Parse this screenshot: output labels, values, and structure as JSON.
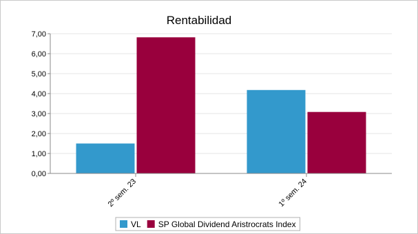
{
  "chart_data": {
    "type": "bar",
    "title": "Rentabilidad",
    "xlabel": "",
    "ylabel": "",
    "categories": [
      "2º sem. 23",
      "1º sem. 24"
    ],
    "series": [
      {
        "name": "VL",
        "values": [
          1.5,
          4.18
        ],
        "color": "#3399cc"
      },
      {
        "name": "SP Global Dividend Aristrocrats Index",
        "values": [
          6.82,
          3.08
        ],
        "color": "#99003d"
      }
    ],
    "ylim": [
      0,
      7
    ],
    "yticks": [
      "0,00",
      "1,00",
      "2,00",
      "3,00",
      "4,00",
      "5,00",
      "6,00",
      "7,00"
    ],
    "grid": true,
    "legend_position": "bottom-center"
  }
}
